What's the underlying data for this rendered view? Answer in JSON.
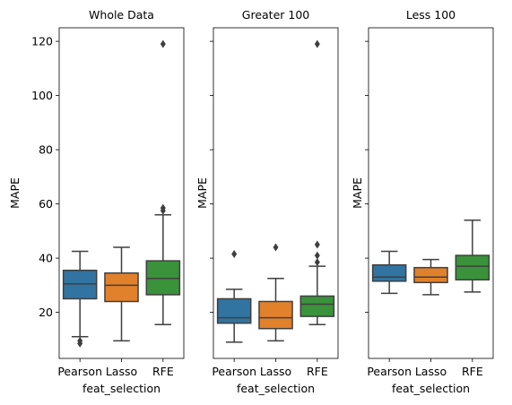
{
  "chart_data": [
    {
      "type": "box",
      "title": "Whole Data",
      "xlabel": "feat_selection",
      "ylabel": "MAPE",
      "ylim": [
        3,
        125
      ],
      "categories": [
        "Pearson",
        "Lasso",
        "RFE"
      ],
      "colors": [
        "#3274a1",
        "#e1812c",
        "#3a923a"
      ],
      "boxes": [
        {
          "name": "Pearson",
          "whisker_low": 11,
          "q1": 25,
          "median": 30.5,
          "q3": 35.5,
          "whisker_high": 42.5,
          "outliers": [
            8.5,
            9.5
          ]
        },
        {
          "name": "Lasso",
          "whisker_low": 9.5,
          "q1": 24,
          "median": 30,
          "q3": 34.5,
          "whisker_high": 44,
          "outliers": []
        },
        {
          "name": "RFE",
          "whisker_low": 15.5,
          "q1": 26.5,
          "median": 32.5,
          "q3": 39,
          "whisker_high": 56,
          "outliers": [
            57.5,
            58.5,
            119
          ]
        }
      ]
    },
    {
      "type": "box",
      "title": "Greater 100",
      "xlabel": "feat_selection",
      "ylabel": "MAPE",
      "ylim": [
        3,
        125
      ],
      "categories": [
        "Pearson",
        "Lasso",
        "RFE"
      ],
      "colors": [
        "#3274a1",
        "#e1812c",
        "#3a923a"
      ],
      "boxes": [
        {
          "name": "Pearson",
          "whisker_low": 9,
          "q1": 16,
          "median": 18,
          "q3": 25,
          "whisker_high": 28.5,
          "outliers": [
            41.5
          ]
        },
        {
          "name": "Lasso",
          "whisker_low": 9.5,
          "q1": 14,
          "median": 18,
          "q3": 24,
          "whisker_high": 32.5,
          "outliers": [
            44
          ]
        },
        {
          "name": "RFE",
          "whisker_low": 15.5,
          "q1": 18.5,
          "median": 23,
          "q3": 26,
          "whisker_high": 37,
          "outliers": [
            38.5,
            41,
            45,
            119
          ]
        }
      ]
    },
    {
      "type": "box",
      "title": "Less 100",
      "xlabel": "feat_selection",
      "ylabel": "MAPE",
      "ylim": [
        3,
        125
      ],
      "categories": [
        "Pearson",
        "Lasso",
        "RFE"
      ],
      "colors": [
        "#3274a1",
        "#e1812c",
        "#3a923a"
      ],
      "boxes": [
        {
          "name": "Pearson",
          "whisker_low": 27,
          "q1": 31.5,
          "median": 33,
          "q3": 37.5,
          "whisker_high": 42.5,
          "outliers": []
        },
        {
          "name": "Lasso",
          "whisker_low": 26.5,
          "q1": 31,
          "median": 33,
          "q3": 36.5,
          "whisker_high": 39.5,
          "outliers": []
        },
        {
          "name": "RFE",
          "whisker_low": 27.5,
          "q1": 32,
          "median": 37,
          "q3": 41,
          "whisker_high": 54,
          "outliers": []
        }
      ]
    }
  ],
  "y_ticks": [
    20,
    40,
    60,
    80,
    100,
    120
  ]
}
